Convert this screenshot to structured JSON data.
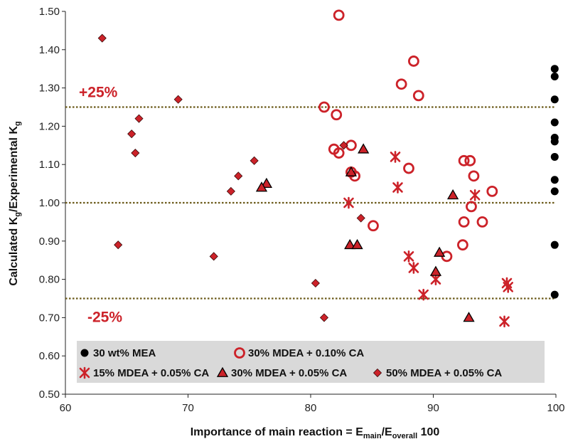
{
  "chart_data": {
    "type": "scatter",
    "title": "",
    "xlabel": "Importance of main reaction = E",
    "xlabel_sub": "main",
    "xlabel_mid": "/E",
    "xlabel_sub2": "overall",
    "xlabel_tail": " 100",
    "ylabel": "Calculated K",
    "ylabel_sub": "g",
    "ylabel_mid": "/Experimental K",
    "ylabel_sub2": "g",
    "xlim": [
      60,
      100
    ],
    "ylim": [
      0.5,
      1.5
    ],
    "xticks": [
      60,
      70,
      80,
      90,
      100
    ],
    "xtick_labels": [
      "60",
      "70",
      "80",
      "90",
      "100"
    ],
    "yticks": [
      0.5,
      0.6,
      0.7,
      0.8,
      0.9,
      1.0,
      1.1,
      1.2,
      1.3,
      1.4,
      1.5
    ],
    "ytick_labels": [
      "0.50",
      "0.60",
      "0.70",
      "0.80",
      "0.90",
      "1.00",
      "1.10",
      "1.20",
      "1.30",
      "1.40",
      "1.50"
    ],
    "grid": false,
    "legend_position": "bottom",
    "reference_lines": [
      {
        "y": 1.25,
        "label": "+25%",
        "color": "#6b5a1a"
      },
      {
        "y": 1.0,
        "label": "",
        "color": "#6b5a1a"
      },
      {
        "y": 0.75,
        "label": "-25%",
        "color": "#6b5a1a"
      }
    ],
    "label_color": "#cc2229",
    "series": [
      {
        "name": "30 wt% MEA",
        "marker": "filled-circle",
        "color": "#000000",
        "x": [
          99.9,
          99.9,
          99.9,
          99.9,
          99.9,
          99.9,
          99.9,
          99.9,
          99.9,
          99.9,
          99.9
        ],
        "y": [
          1.35,
          1.33,
          1.27,
          1.21,
          1.16,
          1.12,
          1.06,
          1.03,
          0.89,
          0.76,
          1.17
        ]
      },
      {
        "name": "30% MDEA + 0.10% CA",
        "marker": "open-circle",
        "color": "#cc2229",
        "x": [
          82.3,
          88.4,
          87.4,
          88.8,
          81.1,
          82.1,
          81.9,
          82.3,
          83.3,
          83.3,
          83.6,
          88.0,
          85.1,
          92.5,
          93.0,
          93.3,
          92.5,
          93.1,
          94.8,
          94.0,
          91.1,
          92.4
        ],
        "y": [
          1.49,
          1.37,
          1.31,
          1.28,
          1.25,
          1.23,
          1.14,
          1.13,
          1.15,
          1.08,
          1.07,
          1.09,
          0.94,
          1.11,
          1.11,
          1.07,
          0.95,
          0.99,
          1.03,
          0.95,
          0.86,
          0.89
        ]
      },
      {
        "name": "15% MDEA + 0.05% CA",
        "marker": "asterisk",
        "color": "#cc2229",
        "x": [
          86.9,
          87.1,
          83.1,
          88.0,
          88.4,
          89.2,
          90.2,
          93.4,
          96.0,
          96.1,
          95.8
        ],
        "y": [
          1.12,
          1.04,
          1.0,
          0.86,
          0.83,
          0.76,
          0.8,
          1.02,
          0.79,
          0.78,
          0.69
        ]
      },
      {
        "name": "30% MDEA + 0.05% CA",
        "marker": "filled-triangle",
        "color": "#cc2229",
        "x": [
          76.4,
          76.0,
          84.3,
          83.3,
          83.2,
          83.8,
          91.6,
          90.5,
          90.2,
          92.9
        ],
        "y": [
          1.05,
          1.04,
          1.14,
          1.08,
          0.89,
          0.89,
          1.02,
          0.87,
          0.82,
          0.7
        ]
      },
      {
        "name": "50% MDEA + 0.05% CA",
        "marker": "filled-diamond",
        "color": "#cc2229",
        "x": [
          63.0,
          69.2,
          66.0,
          65.4,
          65.7,
          64.3,
          75.4,
          74.1,
          73.5,
          72.1,
          80.4,
          81.1,
          82.7,
          84.1
        ],
        "y": [
          1.43,
          1.27,
          1.22,
          1.18,
          1.13,
          0.89,
          1.11,
          1.07,
          1.03,
          0.86,
          0.79,
          0.7,
          1.15,
          0.96
        ]
      }
    ]
  }
}
